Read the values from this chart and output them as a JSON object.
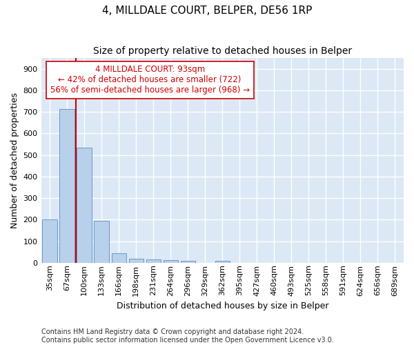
{
  "title": "4, MILLDALE COURT, BELPER, DE56 1RP",
  "subtitle": "Size of property relative to detached houses in Belper",
  "xlabel": "Distribution of detached houses by size in Belper",
  "ylabel": "Number of detached properties",
  "bins": [
    "35sqm",
    "67sqm",
    "100sqm",
    "133sqm",
    "166sqm",
    "198sqm",
    "231sqm",
    "264sqm",
    "296sqm",
    "329sqm",
    "362sqm",
    "395sqm",
    "427sqm",
    "460sqm",
    "493sqm",
    "525sqm",
    "558sqm",
    "591sqm",
    "624sqm",
    "656sqm",
    "689sqm"
  ],
  "values": [
    200,
    714,
    535,
    193,
    45,
    20,
    14,
    12,
    9,
    0,
    9,
    0,
    0,
    0,
    0,
    0,
    0,
    0,
    0,
    0,
    0
  ],
  "bar_color": "#b8d0ea",
  "bar_edge_color": "#6699cc",
  "plot_bg_color": "#dce8f5",
  "grid_color": "#ffffff",
  "fig_bg_color": "#ffffff",
  "annotation_color": "#cc0000",
  "vline_x": 1.5,
  "annotation_text": "4 MILLDALE COURT: 93sqm\n← 42% of detached houses are smaller (722)\n56% of semi-detached houses are larger (968) →",
  "ylim": [
    0,
    950
  ],
  "yticks": [
    0,
    100,
    200,
    300,
    400,
    500,
    600,
    700,
    800,
    900
  ],
  "footnote": "Contains HM Land Registry data © Crown copyright and database right 2024.\nContains public sector information licensed under the Open Government Licence v3.0.",
  "title_fontsize": 11,
  "subtitle_fontsize": 10,
  "axis_label_fontsize": 9,
  "tick_fontsize": 8,
  "annotation_fontsize": 8.5,
  "footnote_fontsize": 7
}
